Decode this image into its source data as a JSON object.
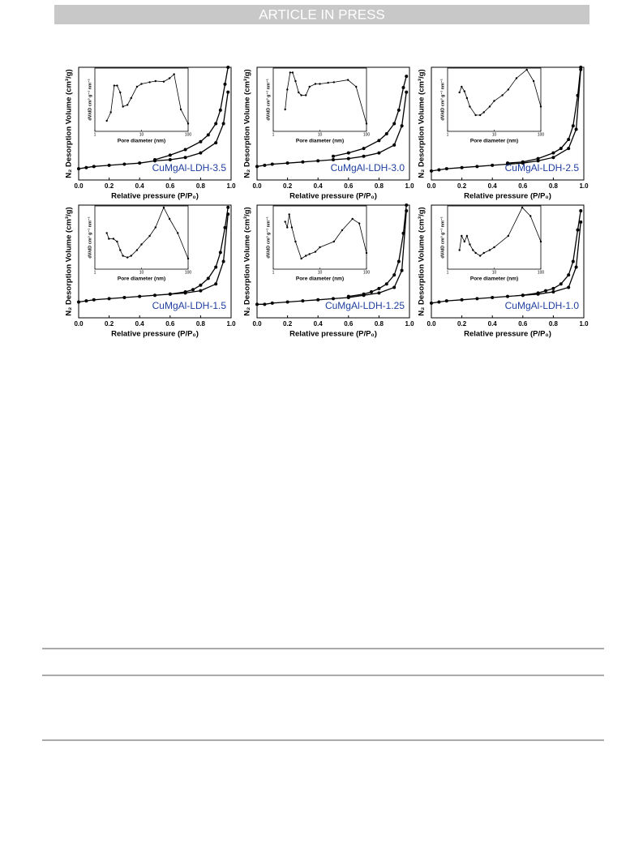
{
  "header": {
    "title": "ARTICLE IN PRESS"
  },
  "figure": {
    "panels": [
      {
        "label": "CuMgAl-LDH-3.5",
        "main": {
          "type": "line",
          "x_label": "Relative pressure (P/P₀)",
          "y_label": "N₂ Desorption Volume (cm³/g)",
          "xlim": [
            0,
            1
          ],
          "ylim": [
            0,
            100
          ],
          "xticks": [
            {
              "value": 0,
              "label": "0.0"
            },
            0.2,
            0.4,
            0.6,
            0.8,
            {
              "value": 1,
              "label": "1.0"
            }
          ],
          "series": [
            {
              "color": "#000000",
              "x": [
                0,
                0.05,
                0.1,
                0.2,
                0.3,
                0.4,
                0.5,
                0.6,
                0.7,
                0.8,
                0.9,
                0.95,
                0.98
              ],
              "values": [
                10,
                11,
                12,
                13,
                14,
                15,
                17,
                18,
                20,
                24,
                33,
                50,
                78
              ]
            },
            {
              "color": "#000000",
              "x": [
                0.98,
                0.96,
                0.93,
                0.9,
                0.85,
                0.8,
                0.7,
                0.6,
                0.5
              ],
              "values": [
                100,
                85,
                62,
                50,
                40,
                34,
                27,
                22,
                18
              ]
            }
          ]
        },
        "inset": {
          "type": "line",
          "x_label": "Pore diameter (nm)",
          "y_label": "dV/dD cm³ g⁻¹ nm⁻¹",
          "xscale": "log",
          "xlim": [
            1,
            100
          ],
          "ylim": [
            0,
            100
          ],
          "xticks": [
            1,
            10,
            100
          ],
          "series": [
            {
              "color": "#000000",
              "x": [
                1.8,
                2.2,
                2.6,
                3,
                3.5,
                4,
                5,
                6,
                8,
                10,
                15,
                20,
                30,
                40,
                50,
                70,
                100
              ],
              "values": [
                10,
                25,
                72,
                72,
                60,
                35,
                38,
                50,
                70,
                75,
                78,
                80,
                79,
                85,
                92,
                30,
                5
              ]
            }
          ]
        }
      },
      {
        "label": "CuMgAl-LDH-3.0",
        "main": {
          "type": "line",
          "x_label": "Relative pressure (P/P₀)",
          "y_label": "N₂ Desorption Volume (cm³/g)",
          "xlim": [
            0,
            1
          ],
          "ylim": [
            0,
            100
          ],
          "xticks": [
            {
              "value": 0,
              "label": "0.0"
            },
            0.2,
            0.4,
            0.6,
            0.8,
            {
              "value": 1,
              "label": "1.0"
            }
          ],
          "series": [
            {
              "color": "#000000",
              "x": [
                0,
                0.05,
                0.1,
                0.2,
                0.3,
                0.4,
                0.5,
                0.6,
                0.7,
                0.8,
                0.9,
                0.95,
                0.98
              ],
              "values": [
                12,
                13,
                14,
                15,
                16,
                17,
                18,
                19,
                21,
                24,
                31,
                48,
                78
              ]
            },
            {
              "color": "#000000",
              "x": [
                0.98,
                0.96,
                0.93,
                0.9,
                0.85,
                0.8,
                0.7,
                0.6,
                0.5
              ],
              "values": [
                92,
                82,
                62,
                50,
                41,
                35,
                28,
                24,
                21
              ]
            }
          ]
        },
        "inset": {
          "type": "line",
          "x_label": "Pore diameter (nm)",
          "y_label": "dV/dD cm³ g⁻¹ nm⁻¹",
          "xscale": "log",
          "xlim": [
            1,
            100
          ],
          "ylim": [
            0,
            100
          ],
          "xticks": [
            1,
            10,
            100
          ],
          "series": [
            {
              "color": "#000000",
              "x": [
                1.8,
                2,
                2.3,
                2.6,
                3,
                3.5,
                4,
                5,
                6,
                8,
                10,
                15,
                20,
                40,
                60,
                100
              ],
              "values": [
                30,
                65,
                95,
                95,
                80,
                60,
                55,
                55,
                70,
                75,
                75,
                77,
                78,
                82,
                70,
                5
              ]
            }
          ]
        }
      },
      {
        "label": "CuMgAl-LDH-2.5",
        "main": {
          "type": "line",
          "x_label": "Relative pressure (P/P₀)",
          "y_label": "N₂ Desorption Volume (cm³/g)",
          "xlim": [
            0,
            1
          ],
          "ylim": [
            0,
            100
          ],
          "xticks": [
            {
              "value": 0,
              "label": "0.0"
            },
            0.2,
            0.4,
            0.6,
            0.8,
            {
              "value": 1,
              "label": "1.0"
            }
          ],
          "series": [
            {
              "color": "#000000",
              "x": [
                0,
                0.05,
                0.1,
                0.2,
                0.3,
                0.4,
                0.5,
                0.6,
                0.7,
                0.8,
                0.9,
                0.95,
                0.98
              ],
              "values": [
                8,
                9,
                10,
                11,
                12,
                13,
                14,
                15,
                17,
                20,
                28,
                45,
                98
              ]
            },
            {
              "color": "#000000",
              "x": [
                0.98,
                0.96,
                0.93,
                0.9,
                0.85,
                0.8,
                0.7,
                0.6,
                0.5
              ],
              "values": [
                100,
                75,
                48,
                36,
                28,
                24,
                19,
                16,
                15
              ]
            }
          ]
        },
        "inset": {
          "type": "line",
          "x_label": "Pore diameter (nm)",
          "y_label": "dV/dD cm³ g⁻¹ nm⁻¹",
          "xscale": "log",
          "xlim": [
            1,
            100
          ],
          "ylim": [
            0,
            100
          ],
          "xticks": [
            1,
            10,
            100
          ],
          "series": [
            {
              "color": "#000000",
              "x": [
                1.8,
                2,
                2.3,
                2.6,
                3,
                4,
                5,
                6,
                8,
                10,
                15,
                20,
                30,
                50,
                70,
                100
              ],
              "values": [
                60,
                70,
                62,
                50,
                35,
                20,
                20,
                25,
                35,
                45,
                55,
                65,
                85,
                100,
                80,
                35
              ]
            }
          ]
        }
      },
      {
        "label": "CuMgAl-LDH-1.5",
        "main": {
          "type": "line",
          "x_label": "Relative pressure (P/P₀)",
          "y_label": "N₂ Desorption Volume (cm³/g)",
          "xlim": [
            0,
            1
          ],
          "ylim": [
            0,
            100
          ],
          "xticks": [
            {
              "value": 0,
              "label": "0.0"
            },
            0.2,
            0.4,
            0.6,
            0.8,
            {
              "value": 1,
              "label": "1.0"
            }
          ],
          "series": [
            {
              "color": "#000000",
              "x": [
                0,
                0.05,
                0.1,
                0.2,
                0.3,
                0.4,
                0.5,
                0.6,
                0.7,
                0.8,
                0.9,
                0.95,
                0.98
              ],
              "values": [
                14,
                15,
                16,
                17,
                18,
                19,
                20,
                21,
                22,
                24,
                30,
                50,
                92
              ]
            },
            {
              "color": "#000000",
              "x": [
                0.98,
                0.96,
                0.93,
                0.9,
                0.85,
                0.8,
                0.75,
                0.7,
                0.6
              ],
              "values": [
                98,
                80,
                58,
                45,
                35,
                29,
                25,
                23,
                21
              ]
            }
          ]
        },
        "inset": {
          "type": "line",
          "x_label": "Pore diameter (nm)",
          "y_label": "dV/dD cm³ g⁻¹ nm⁻¹",
          "xscale": "log",
          "xlim": [
            1,
            100
          ],
          "ylim": [
            0,
            100
          ],
          "xticks": [
            1,
            10,
            100
          ],
          "series": [
            {
              "color": "#000000",
              "x": [
                1.8,
                2,
                2.5,
                3,
                3.5,
                4,
                5,
                6,
                8,
                10,
                15,
                20,
                30,
                40,
                60,
                100
              ],
              "values": [
                55,
                45,
                45,
                40,
                25,
                15,
                12,
                15,
                25,
                35,
                50,
                65,
                100,
                80,
                55,
                10
              ]
            }
          ]
        }
      },
      {
        "label": "CuMgAl-LDH-1.25",
        "main": {
          "type": "line",
          "x_label": "Relative pressure (P/P₀)",
          "y_label": "N₂ Desorption Volume (cm³/g)",
          "xlim": [
            0,
            1
          ],
          "ylim": [
            0,
            100
          ],
          "xticks": [
            {
              "value": 0,
              "label": "0.0"
            },
            0.2,
            0.4,
            0.6,
            0.8,
            {
              "value": 1,
              "label": "1.0"
            }
          ],
          "series": [
            {
              "color": "#000000",
              "x": [
                0,
                0.05,
                0.1,
                0.2,
                0.3,
                0.4,
                0.5,
                0.6,
                0.7,
                0.8,
                0.9,
                0.95,
                0.98
              ],
              "values": [
                12,
                12,
                13,
                14,
                15,
                16,
                17,
                18,
                20,
                22,
                27,
                42,
                95
              ]
            },
            {
              "color": "#000000",
              "x": [
                0.98,
                0.96,
                0.93,
                0.9,
                0.85,
                0.8,
                0.75,
                0.7,
                0.6
              ],
              "values": [
                100,
                75,
                50,
                38,
                30,
                26,
                23,
                21,
                19
              ]
            }
          ]
        },
        "inset": {
          "type": "line",
          "x_label": "Pore diameter (nm)",
          "y_label": "dV/dD cm³ g⁻¹ nm⁻¹",
          "xscale": "log",
          "xlim": [
            1,
            100
          ],
          "ylim": [
            0,
            100
          ],
          "xticks": [
            1,
            10,
            100
          ],
          "series": [
            {
              "color": "#000000",
              "x": [
                1.8,
                2,
                2.2,
                2.5,
                3,
                4,
                5,
                6,
                8,
                10,
                20,
                30,
                50,
                70,
                100
              ],
              "values": [
                75,
                65,
                88,
                65,
                40,
                10,
                15,
                18,
                22,
                30,
                40,
                60,
                80,
                72,
                20
              ]
            }
          ]
        }
      },
      {
        "label": "CuMgAl-LDH-1.0",
        "main": {
          "type": "line",
          "x_label": "Relative pressure (P/P₀)",
          "y_label": "N₂ Desorption Volume (cm³/g)",
          "xlim": [
            0,
            1
          ],
          "ylim": [
            0,
            100
          ],
          "xticks": [
            {
              "value": 0,
              "label": "0.0"
            },
            0.2,
            0.4,
            0.6,
            0.8,
            {
              "value": 1,
              "label": "1.0"
            }
          ],
          "series": [
            {
              "color": "#000000",
              "x": [
                0,
                0.05,
                0.1,
                0.2,
                0.3,
                0.4,
                0.5,
                0.6,
                0.7,
                0.8,
                0.9,
                0.95,
                0.98
              ],
              "values": [
                13,
                14,
                15,
                16,
                17,
                18,
                19,
                20,
                21,
                23,
                27,
                45,
                85
              ]
            },
            {
              "color": "#000000",
              "x": [
                0.98,
                0.96,
                0.93,
                0.9,
                0.85,
                0.8,
                0.75,
                0.7,
                0.6
              ],
              "values": [
                95,
                78,
                50,
                38,
                30,
                26,
                24,
                22,
                20
              ]
            }
          ]
        },
        "inset": {
          "type": "line",
          "x_label": "Pore diameter (nm)",
          "y_label": "dV/dD cm³ g⁻¹ nm⁻¹",
          "xscale": "log",
          "xlim": [
            1,
            100
          ],
          "ylim": [
            0,
            100
          ],
          "xticks": [
            1,
            10,
            100
          ],
          "series": [
            {
              "color": "#000000",
              "x": [
                1.8,
                2,
                2.3,
                2.6,
                3,
                3.5,
                4,
                5,
                6,
                8,
                10,
                20,
                40,
                60,
                100
              ],
              "values": [
                25,
                50,
                40,
                50,
                35,
                25,
                20,
                15,
                20,
                25,
                30,
                50,
                100,
                85,
                40
              ]
            }
          ]
        }
      }
    ]
  }
}
